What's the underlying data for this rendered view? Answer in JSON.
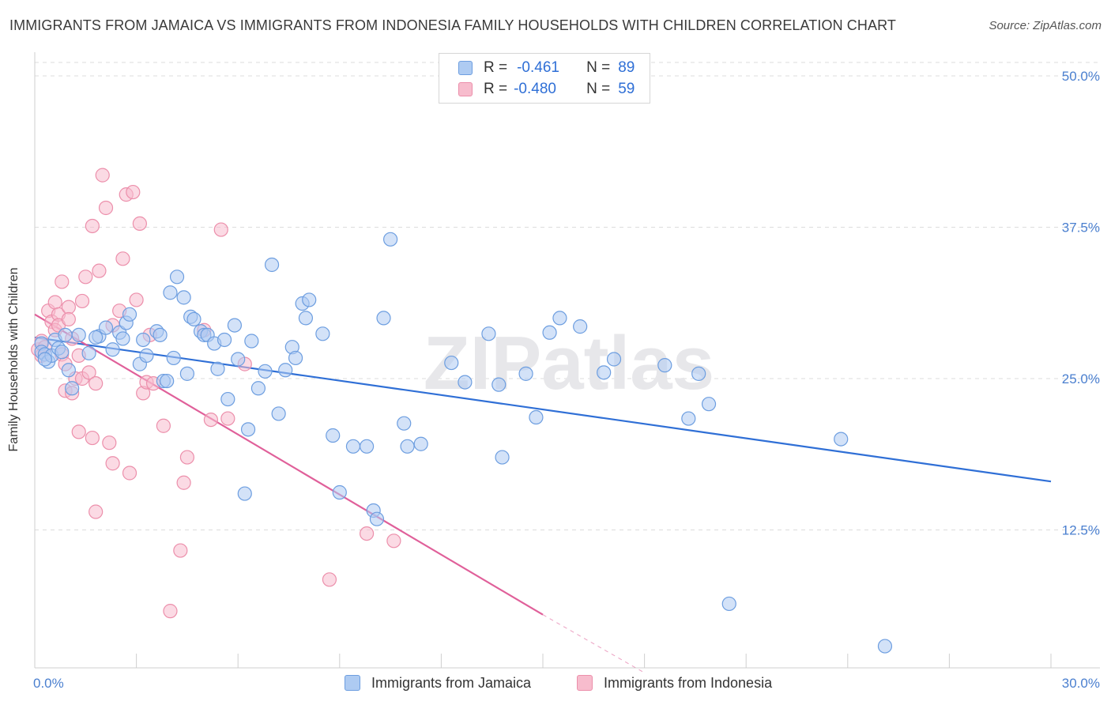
{
  "title": "IMMIGRANTS FROM JAMAICA VS IMMIGRANTS FROM INDONESIA FAMILY HOUSEHOLDS WITH CHILDREN CORRELATION CHART",
  "source": "Source: ZipAtlas.com",
  "watermark": "ZIPatlas",
  "legend": {
    "r_label": "R =",
    "n_label": "N =",
    "jamaica": {
      "r": "-0.461",
      "n": "89"
    },
    "indonesia": {
      "r": "-0.480",
      "n": "59"
    }
  },
  "bottom_legend": {
    "jamaica": "Immigrants from Jamaica",
    "indonesia": "Immigrants from Indonesia"
  },
  "colors": {
    "jamaica_fill": "#aecbf2",
    "jamaica_stroke": "#6d9ee0",
    "jamaica_line": "#2f6fd6",
    "indonesia_fill": "#f7bccd",
    "indonesia_stroke": "#ec8fab",
    "indonesia_line": "#e0609a",
    "tick_text": "#4a7fcf",
    "grid": "#dcdcdc"
  },
  "chart_data": {
    "type": "scatter",
    "ylabel": "Family Households with Children",
    "xlim": [
      0,
      30
    ],
    "ylim": [
      0,
      50
    ],
    "x_tick_labels": [
      "0.0%",
      "30.0%"
    ],
    "y_ticks": [
      12.5,
      25.0,
      37.5,
      50.0
    ],
    "y_tick_labels": [
      "12.5%",
      "25.0%",
      "37.5%",
      "50.0%"
    ],
    "grid": true,
    "series": [
      {
        "name": "Immigrants from Jamaica",
        "points": [
          [
            0.2,
            27.9
          ],
          [
            0.2,
            27.2
          ],
          [
            0.3,
            27.0
          ],
          [
            0.4,
            26.4
          ],
          [
            0.5,
            26.9
          ],
          [
            0.6,
            28.2
          ],
          [
            0.7,
            27.5
          ],
          [
            0.8,
            27.2
          ],
          [
            0.9,
            28.6
          ],
          [
            1.0,
            25.7
          ],
          [
            1.1,
            24.2
          ],
          [
            1.3,
            28.6
          ],
          [
            1.6,
            27.1
          ],
          [
            1.9,
            28.5
          ],
          [
            2.1,
            29.2
          ],
          [
            2.3,
            27.4
          ],
          [
            2.5,
            28.8
          ],
          [
            2.6,
            28.3
          ],
          [
            2.7,
            29.6
          ],
          [
            2.8,
            30.3
          ],
          [
            3.1,
            26.2
          ],
          [
            3.2,
            28.2
          ],
          [
            3.3,
            26.9
          ],
          [
            3.6,
            28.9
          ],
          [
            3.7,
            28.6
          ],
          [
            3.8,
            24.8
          ],
          [
            3.9,
            24.8
          ],
          [
            4.0,
            32.1
          ],
          [
            4.1,
            26.7
          ],
          [
            4.2,
            33.4
          ],
          [
            4.4,
            31.7
          ],
          [
            4.5,
            25.4
          ],
          [
            4.6,
            30.1
          ],
          [
            4.7,
            29.9
          ],
          [
            4.9,
            28.9
          ],
          [
            5.0,
            28.6
          ],
          [
            5.1,
            28.6
          ],
          [
            5.3,
            27.9
          ],
          [
            5.4,
            25.8
          ],
          [
            5.6,
            28.2
          ],
          [
            5.7,
            23.3
          ],
          [
            5.9,
            29.4
          ],
          [
            6.0,
            26.6
          ],
          [
            6.2,
            15.5
          ],
          [
            6.3,
            20.8
          ],
          [
            6.4,
            28.1
          ],
          [
            6.6,
            24.2
          ],
          [
            6.8,
            25.6
          ],
          [
            7.0,
            34.4
          ],
          [
            7.2,
            22.1
          ],
          [
            7.4,
            25.7
          ],
          [
            7.6,
            27.6
          ],
          [
            7.7,
            26.7
          ],
          [
            7.9,
            31.2
          ],
          [
            8.0,
            30.0
          ],
          [
            8.1,
            31.5
          ],
          [
            8.5,
            28.7
          ],
          [
            8.8,
            20.3
          ],
          [
            9.0,
            15.6
          ],
          [
            9.4,
            19.4
          ],
          [
            9.8,
            19.4
          ],
          [
            10.0,
            14.1
          ],
          [
            10.1,
            13.4
          ],
          [
            10.3,
            30.0
          ],
          [
            10.5,
            36.5
          ],
          [
            10.9,
            21.3
          ],
          [
            11.0,
            19.4
          ],
          [
            11.4,
            19.6
          ],
          [
            12.3,
            26.3
          ],
          [
            12.7,
            24.7
          ],
          [
            13.4,
            28.7
          ],
          [
            13.7,
            24.5
          ],
          [
            13.8,
            18.5
          ],
          [
            14.5,
            25.4
          ],
          [
            14.8,
            21.8
          ],
          [
            15.2,
            28.8
          ],
          [
            15.5,
            30.0
          ],
          [
            16.1,
            29.3
          ],
          [
            16.8,
            25.5
          ],
          [
            17.1,
            26.6
          ],
          [
            18.6,
            26.1
          ],
          [
            19.3,
            21.7
          ],
          [
            19.6,
            25.4
          ],
          [
            19.9,
            22.9
          ],
          [
            20.5,
            6.4
          ],
          [
            23.8,
            20.0
          ],
          [
            25.1,
            2.9
          ],
          [
            0.3,
            26.6
          ],
          [
            1.8,
            28.4
          ]
        ]
      },
      {
        "name": "Immigrants from Indonesia",
        "points": [
          [
            0.1,
            27.4
          ],
          [
            0.2,
            28.1
          ],
          [
            0.2,
            26.9
          ],
          [
            0.3,
            27.6
          ],
          [
            0.4,
            30.6
          ],
          [
            0.5,
            29.7
          ],
          [
            0.6,
            31.3
          ],
          [
            0.6,
            29.0
          ],
          [
            0.7,
            30.3
          ],
          [
            0.7,
            29.4
          ],
          [
            0.8,
            27.0
          ],
          [
            0.8,
            33.0
          ],
          [
            0.9,
            26.2
          ],
          [
            0.9,
            24.0
          ],
          [
            1.0,
            30.9
          ],
          [
            1.0,
            29.9
          ],
          [
            1.1,
            28.3
          ],
          [
            1.1,
            23.8
          ],
          [
            1.2,
            25.0
          ],
          [
            1.3,
            20.6
          ],
          [
            1.3,
            26.9
          ],
          [
            1.4,
            31.4
          ],
          [
            1.4,
            25.0
          ],
          [
            1.5,
            33.4
          ],
          [
            1.6,
            25.5
          ],
          [
            1.7,
            37.6
          ],
          [
            1.7,
            20.1
          ],
          [
            1.8,
            24.6
          ],
          [
            1.8,
            14.0
          ],
          [
            1.9,
            33.9
          ],
          [
            2.0,
            41.8
          ],
          [
            2.1,
            39.1
          ],
          [
            2.2,
            19.7
          ],
          [
            2.3,
            29.4
          ],
          [
            2.3,
            18.0
          ],
          [
            2.5,
            30.6
          ],
          [
            2.6,
            34.9
          ],
          [
            2.7,
            40.2
          ],
          [
            2.8,
            17.2
          ],
          [
            2.9,
            40.4
          ],
          [
            3.0,
            31.5
          ],
          [
            3.1,
            37.8
          ],
          [
            3.2,
            23.8
          ],
          [
            3.3,
            24.7
          ],
          [
            3.4,
            28.6
          ],
          [
            3.5,
            24.6
          ],
          [
            3.8,
            21.1
          ],
          [
            4.0,
            5.8
          ],
          [
            4.3,
            10.8
          ],
          [
            4.4,
            16.4
          ],
          [
            4.5,
            18.5
          ],
          [
            5.0,
            29.0
          ],
          [
            5.2,
            21.6
          ],
          [
            5.5,
            37.3
          ],
          [
            5.7,
            21.7
          ],
          [
            6.2,
            26.2
          ],
          [
            8.7,
            8.4
          ],
          [
            9.8,
            12.2
          ],
          [
            10.6,
            11.6
          ]
        ]
      }
    ],
    "trend_lines": [
      {
        "series": "Immigrants from Jamaica",
        "from": [
          0.0,
          28.4
        ],
        "to": [
          30.0,
          16.5
        ]
      },
      {
        "series": "Immigrants from Indonesia",
        "from": [
          0.0,
          30.3
        ],
        "to": [
          15.0,
          5.5
        ],
        "dashed_to": [
          18.0,
          0.7
        ]
      }
    ]
  }
}
